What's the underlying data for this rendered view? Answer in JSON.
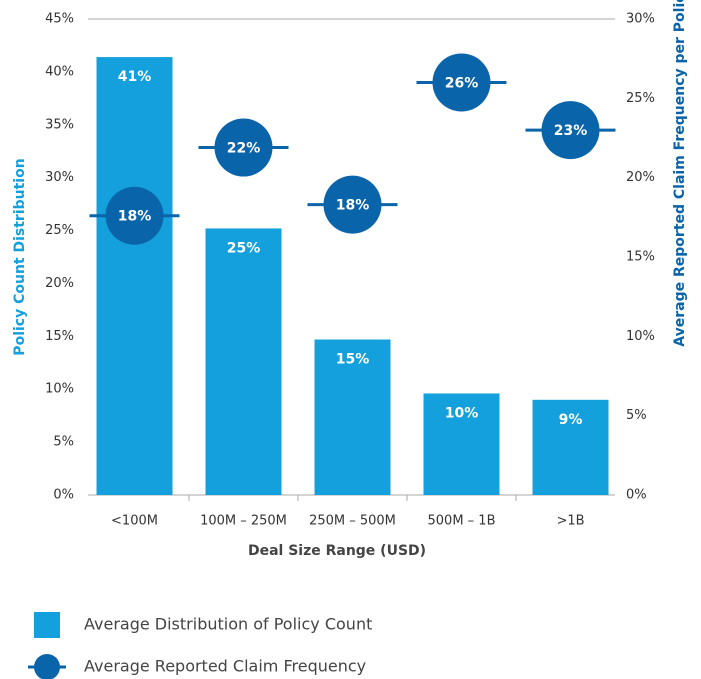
{
  "chart_data": {
    "type": "bar",
    "x_label": "Deal Size Range (USD)",
    "y_label": "Policy Count Distribution",
    "y2_label": "Average Reported Claim Frequency per Policy",
    "categories": [
      "<100M",
      "100M – 250M",
      "250M – 500M",
      "500M – 1B",
      ">1B"
    ],
    "series": [
      {
        "name": "Average Distribution of Policy Count",
        "type": "bar",
        "color": "#14a0dc",
        "values": [
          41.4,
          25.2,
          14.7,
          9.6,
          9.0
        ],
        "value_labels": [
          "41%",
          "25%",
          "15%",
          "10%",
          "9%"
        ]
      },
      {
        "name": "Average Reported Claim Frequency",
        "type": "marker",
        "axis": "y2",
        "color": "#0a64aa",
        "values": [
          17.6,
          21.9,
          18.3,
          26.0,
          23.0
        ],
        "value_labels": [
          "18%",
          "22%",
          "18%",
          "26%",
          "23%"
        ]
      }
    ],
    "ylim": [
      0,
      45
    ],
    "yticks": [
      {
        "value": 0,
        "label": "0%"
      },
      {
        "value": 5,
        "label": "5%"
      },
      {
        "value": 10,
        "label": "10%"
      },
      {
        "value": 15,
        "label": "15%"
      },
      {
        "value": 20,
        "label": "20%"
      },
      {
        "value": 25,
        "label": "25%"
      },
      {
        "value": 30,
        "label": "30%"
      },
      {
        "value": 35,
        "label": "35%"
      },
      {
        "value": 40,
        "label": "40%"
      },
      {
        "value": 45,
        "label": "45%"
      }
    ],
    "y2lim": [
      0,
      30
    ],
    "y2ticks": [
      {
        "value": 0,
        "label": "0%"
      },
      {
        "value": 5,
        "label": "5%"
      },
      {
        "value": 10,
        "label": "10%"
      },
      {
        "value": 15,
        "label": "15%"
      },
      {
        "value": 20,
        "label": "20%"
      },
      {
        "value": 25,
        "label": "25%"
      },
      {
        "value": 30,
        "label": "30%"
      }
    ],
    "legend": "bottom"
  }
}
